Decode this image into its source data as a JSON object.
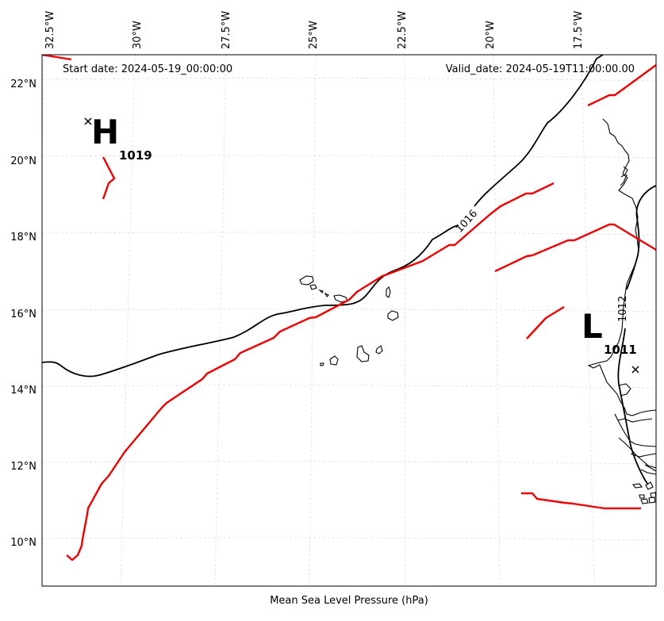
{
  "header": {
    "start_date": "Start date: 2024-05-19_00:00:00",
    "valid_date": "Valid_date: 2024-05-19T11:00:00.00"
  },
  "axis": {
    "x_label": "Mean Sea Level Pressure (hPa)",
    "lon_ticks": [
      "32.5°W",
      "30°W",
      "27.5°W",
      "25°W",
      "22.5°W",
      "20°W",
      "17.5°W"
    ],
    "lat_ticks": [
      "22°N",
      "20°N",
      "18°N",
      "16°N",
      "14°N",
      "12°N",
      "10°N"
    ]
  },
  "systems": {
    "high": {
      "letter": "H",
      "value": "1019"
    },
    "low": {
      "letter": "L",
      "value": "1011"
    }
  },
  "contours": {
    "label_1016": "1016",
    "label_1012": "1012"
  },
  "colors": {
    "front": "#ee0000",
    "isobar": "#000000",
    "grid": "#dcdcdc"
  }
}
